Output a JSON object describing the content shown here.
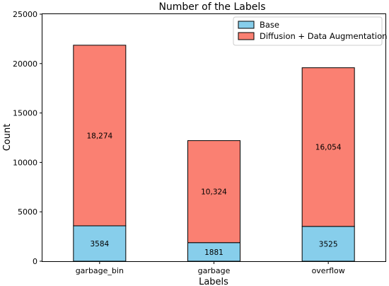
{
  "chart_data": {
    "type": "bar",
    "stacked": true,
    "title": "Number of the Labels",
    "xlabel": "Labels",
    "ylabel": "Count",
    "categories": [
      "garbage_bin",
      "garbage",
      "overflow"
    ],
    "ylim": [
      0,
      25000
    ],
    "yticks": [
      0,
      5000,
      10000,
      15000,
      20000,
      25000
    ],
    "yticklabels": [
      "0",
      "5000",
      "10000",
      "15000",
      "20000",
      "25000"
    ],
    "grid": false,
    "legend_position": "top-right",
    "series": [
      {
        "name": "Base",
        "color": "#87ceeb",
        "values": [
          3584,
          1881,
          3525
        ],
        "data_labels": [
          "3584",
          "1881",
          "3525"
        ]
      },
      {
        "name": "Diffusion + Data Augmentation",
        "color": "#fa8072",
        "values": [
          18274,
          10324,
          16054
        ],
        "data_labels": [
          "18,274",
          "10,324",
          "16,054"
        ]
      }
    ]
  }
}
